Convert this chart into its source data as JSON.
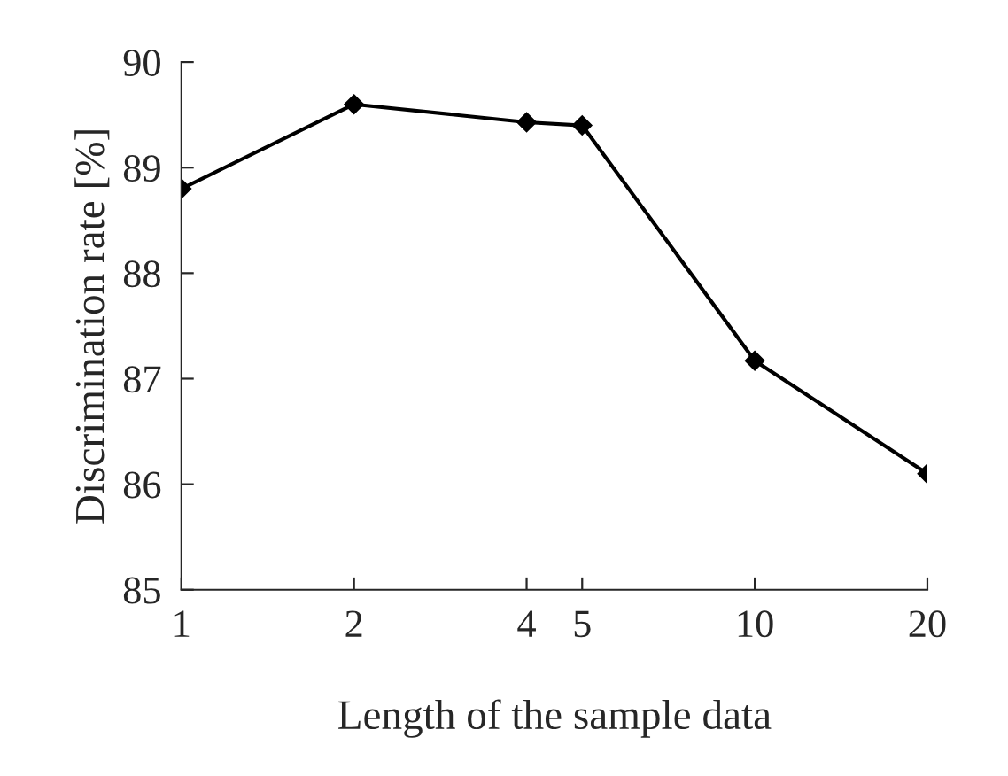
{
  "chart_data": {
    "type": "line",
    "xlabel": "Length of the sample data",
    "ylabel": "Discrimination rate [%]",
    "log": "x",
    "x": [
      1,
      2,
      4,
      5,
      10,
      20
    ],
    "series": [
      {
        "color": "#000000",
        "values": [
          88.8,
          89.6,
          89.43,
          89.4,
          87.17,
          86.1
        ]
      }
    ],
    "xlim": [
      1,
      20
    ],
    "xticks": [
      1,
      2,
      4,
      5,
      10,
      20
    ],
    "ylim": [
      85,
      90
    ],
    "yticks": [
      85,
      86,
      87,
      88,
      89,
      90
    ],
    "marker": "diamond",
    "line_style": "solid",
    "grid": false,
    "legend": false
  }
}
